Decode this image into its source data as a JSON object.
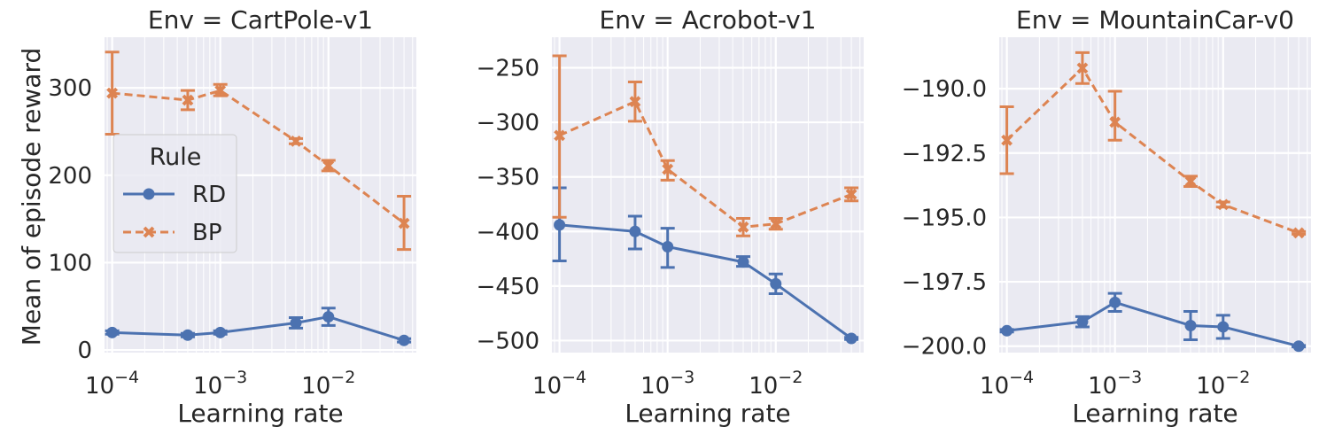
{
  "figure": {
    "ylabel": "Mean of episode reward",
    "xlabel": "Learning rate",
    "legend": {
      "title": "Rule",
      "entries": [
        "RD",
        "BP"
      ]
    }
  },
  "colors": {
    "RD": "#4c72b0",
    "BP": "#dd8452",
    "panel_bg": "#eaeaf2",
    "grid": "#ffffff",
    "text": "#262626"
  },
  "chart_data": [
    {
      "type": "line",
      "title": "Env = CartPole-v1",
      "x": [
        0.0001,
        0.0005,
        0.001,
        0.005,
        0.01,
        0.05
      ],
      "xscale": "log",
      "xlim": [
        8.5e-05,
        0.065
      ],
      "xticks": [
        {
          "value": 0.0001,
          "base": "10",
          "exp": "−4"
        },
        {
          "value": 0.001,
          "base": "10",
          "exp": "−3"
        },
        {
          "value": 0.01,
          "base": "10",
          "exp": "−2"
        }
      ],
      "ylim": [
        -3,
        358
      ],
      "yticks": [
        {
          "value": 0,
          "label": "0"
        },
        {
          "value": 100,
          "label": "100"
        },
        {
          "value": 200,
          "label": "200"
        },
        {
          "value": 300,
          "label": "300"
        }
      ],
      "series": [
        {
          "name": "RD",
          "marker": "circle",
          "linestyle": "solid",
          "values": [
            20,
            17,
            20,
            31,
            38,
            11
          ],
          "err_low": [
            18,
            15,
            18,
            25,
            28,
            9
          ],
          "err_high": [
            22,
            19,
            22,
            37,
            48,
            13
          ]
        },
        {
          "name": "BP",
          "marker": "x",
          "linestyle": "dashed",
          "values": [
            294,
            286,
            297,
            239,
            211,
            145
          ],
          "err_low": [
            247,
            275,
            291,
            236,
            205,
            115
          ],
          "err_high": [
            341,
            297,
            304,
            242,
            217,
            176
          ]
        }
      ],
      "grid": true,
      "legend_position": "center-left"
    },
    {
      "type": "line",
      "title": "Env = Acrobot-v1",
      "x": [
        0.0001,
        0.0005,
        0.001,
        0.005,
        0.01,
        0.05
      ],
      "xscale": "log",
      "xlim": [
        8.5e-05,
        0.065
      ],
      "xticks": [
        {
          "value": 0.0001,
          "base": "10",
          "exp": "−4"
        },
        {
          "value": 0.001,
          "base": "10",
          "exp": "−3"
        },
        {
          "value": 0.01,
          "base": "10",
          "exp": "−2"
        }
      ],
      "ylim": [
        -511,
        -222
      ],
      "yticks": [
        {
          "value": -250,
          "label": "−250"
        },
        {
          "value": -300,
          "label": "−300"
        },
        {
          "value": -350,
          "label": "−350"
        },
        {
          "value": -400,
          "label": "−400"
        },
        {
          "value": -450,
          "label": "−450"
        },
        {
          "value": -500,
          "label": "−500"
        }
      ],
      "series": [
        {
          "name": "RD",
          "marker": "circle",
          "linestyle": "solid",
          "values": [
            -394,
            -400,
            -414,
            -428,
            -448,
            -498
          ],
          "err_low": [
            -427,
            -416,
            -433,
            -432,
            -457,
            -499
          ],
          "err_high": [
            -360,
            -386,
            -397,
            -423,
            -439,
            -497
          ]
        },
        {
          "name": "BP",
          "marker": "x",
          "linestyle": "dashed",
          "values": [
            -312,
            -281,
            -343,
            -396,
            -393,
            -366
          ],
          "err_low": [
            -387,
            -299,
            -353,
            -404,
            -398,
            -372
          ],
          "err_high": [
            -239,
            -263,
            -335,
            -388,
            -388,
            -360
          ]
        }
      ],
      "grid": true
    },
    {
      "type": "line",
      "title": "Env = MountainCar-v0",
      "x": [
        0.0001,
        0.0005,
        0.001,
        0.005,
        0.01,
        0.05
      ],
      "xscale": "log",
      "xlim": [
        8.5e-05,
        0.065
      ],
      "xticks": [
        {
          "value": 0.0001,
          "base": "10",
          "exp": "−4"
        },
        {
          "value": 0.001,
          "base": "10",
          "exp": "−3"
        },
        {
          "value": 0.01,
          "base": "10",
          "exp": "−2"
        }
      ],
      "ylim": [
        -200.25,
        -188.0
      ],
      "yticks": [
        {
          "value": -190.0,
          "label": "−190.0"
        },
        {
          "value": -192.5,
          "label": "−192.5"
        },
        {
          "value": -195.0,
          "label": "−195.0"
        },
        {
          "value": -197.5,
          "label": "−197.5"
        },
        {
          "value": -200.0,
          "label": "−200.0"
        }
      ],
      "series": [
        {
          "name": "RD",
          "marker": "circle",
          "linestyle": "solid",
          "values": [
            -199.4,
            -199.05,
            -198.3,
            -199.2,
            -199.25,
            -200.0
          ],
          "err_low": [
            -199.45,
            -199.25,
            -198.65,
            -199.75,
            -199.7,
            -200.03
          ],
          "err_high": [
            -199.35,
            -198.85,
            -197.95,
            -198.65,
            -198.8,
            -199.97
          ]
        },
        {
          "name": "BP",
          "marker": "x",
          "linestyle": "dashed",
          "values": [
            -192.0,
            -189.2,
            -191.3,
            -193.6,
            -194.5,
            -195.6
          ],
          "err_low": [
            -193.3,
            -189.8,
            -192.0,
            -193.8,
            -194.6,
            -195.65
          ],
          "err_high": [
            -190.7,
            -188.6,
            -190.1,
            -193.4,
            -194.4,
            -195.55
          ]
        }
      ],
      "grid": true
    }
  ]
}
